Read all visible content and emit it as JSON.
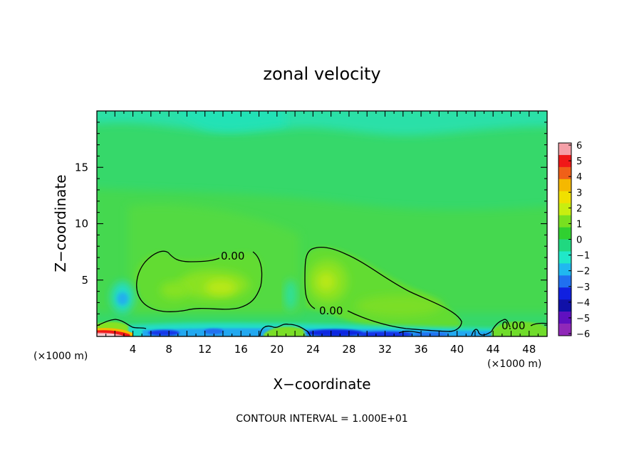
{
  "chart_data": {
    "type": "heatmap",
    "title": "zonal velocity",
    "xlabel": "X−coordinate",
    "ylabel": "Z−coordinate",
    "x_unit_left": "(×1000 m)",
    "x_unit_right": "(×1000 m)",
    "xlim": [
      0,
      50
    ],
    "ylim": [
      0,
      20
    ],
    "xticks": [
      "4",
      "8",
      "12",
      "16",
      "20",
      "24",
      "28",
      "32",
      "36",
      "40",
      "44",
      "48"
    ],
    "yticks": [
      "5",
      "10",
      "15"
    ],
    "footer": "CONTOUR INTERVAL = 1.000E+01",
    "contour_label": "0.00",
    "colorbar": {
      "ticks": [
        "6",
        "5",
        "4",
        "3",
        "2",
        "1",
        "0",
        "−1",
        "−2",
        "−3",
        "−4",
        "−5",
        "−6"
      ],
      "colors": [
        "#f5a0a8",
        "#f01818",
        "#f06018",
        "#f5b800",
        "#f0e000",
        "#c8ee10",
        "#78e020",
        "#30d030",
        "#20d880",
        "#20e8c8",
        "#20b8f0",
        "#2070f0",
        "#1020e0",
        "#1010a8",
        "#6010c0",
        "#9028b8"
      ]
    },
    "features": [
      {
        "name": "positive region 1",
        "x_range": [
          4.5,
          18.5
        ],
        "z_range": [
          2.5,
          7.6
        ],
        "max": 1
      },
      {
        "name": "positive region 2",
        "x_range": [
          23,
          40.5
        ],
        "z_range": [
          1.0,
          7.8
        ],
        "max": 1
      },
      {
        "name": "upper-level negative band",
        "x_range": [
          0,
          50
        ],
        "z_range": [
          17,
          20
        ],
        "min": -1
      },
      {
        "name": "near-surface jet",
        "x_range": [
          0,
          3.5
        ],
        "z_range": [
          0,
          0.5
        ],
        "max": 6
      }
    ]
  }
}
